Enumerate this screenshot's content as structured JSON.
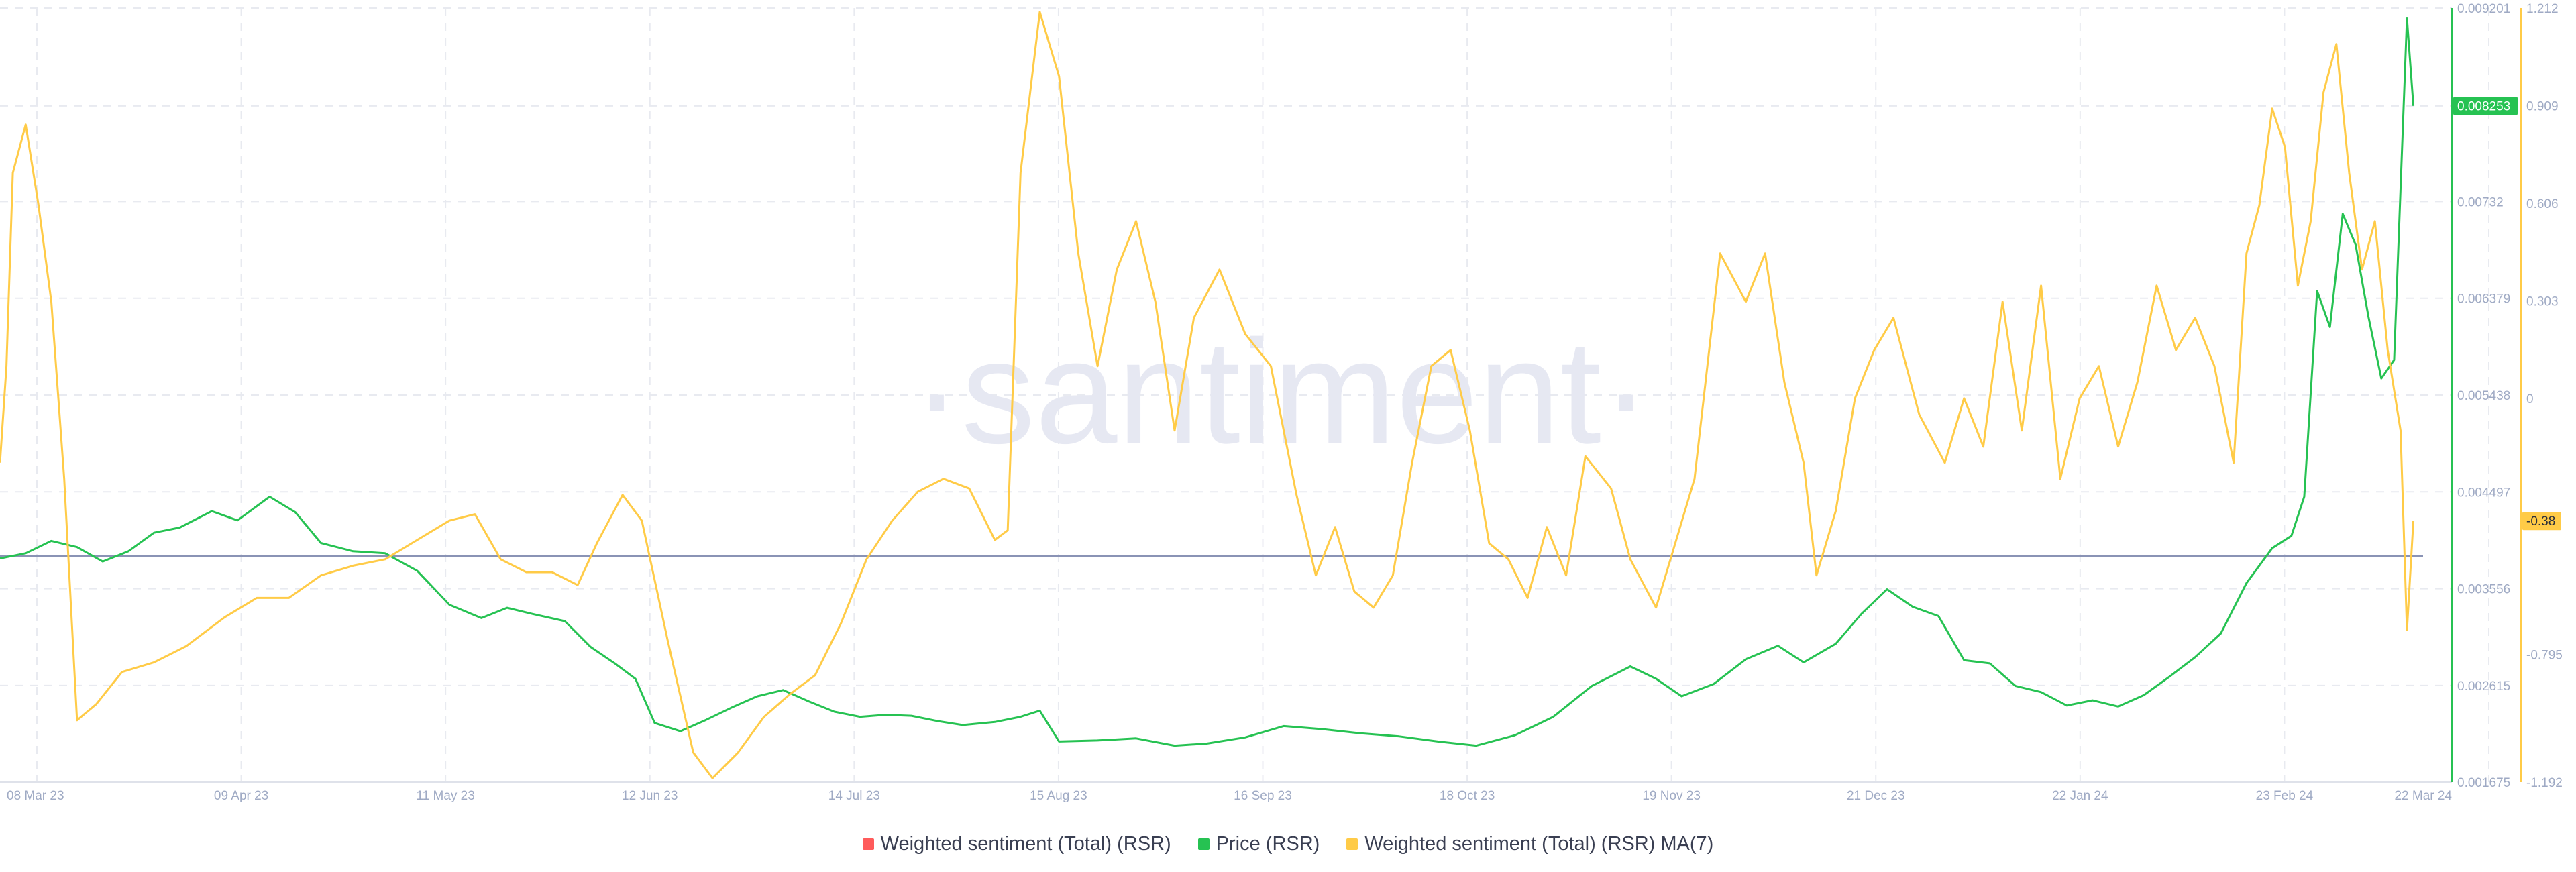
{
  "chart_data": {
    "type": "line",
    "watermark": "·santiment·",
    "x_ticks": [
      "08 Mar 23",
      "09 Apr 23",
      "11 May 23",
      "12 Jun 23",
      "14 Jul 23",
      "15 Aug 23",
      "16 Sep 23",
      "18 Oct 23",
      "19 Nov 23",
      "21 Dec 23",
      "22 Jan 24",
      "23 Feb 24",
      "22 Mar 24"
    ],
    "x_range": [
      "2023-03-06",
      "2024-03-22"
    ],
    "price_axis": {
      "ticks": [
        "0.009201",
        "0.008253",
        "0.00732",
        "0.006379",
        "0.005438",
        "0.004497",
        "0.003556",
        "0.002615",
        "0.001675"
      ],
      "range": [
        0.001675,
        0.009201
      ],
      "current_value": "0.008253",
      "current_color": "#26c252"
    },
    "sentiment_axis": {
      "ticks": [
        "1.212",
        "0.909",
        "0.606",
        "0.303",
        "0",
        "-0.38",
        "-0.795",
        "-1.192"
      ],
      "range": [
        -1.192,
        1.212
      ],
      "current_value": "-0.38",
      "current_color": "#ffcb47"
    },
    "reference_line": {
      "value": -0.49,
      "axis": "sentiment",
      "color": "#8a93b5"
    },
    "series": [
      {
        "name": "Weighted sentiment (Total) (RSR)",
        "color": "#ff5b5b",
        "axis": "sentiment",
        "values": []
      },
      {
        "name": "Price (RSR)",
        "color": "#26c252",
        "axis": "price",
        "values": [
          [
            "2023-03-06",
            0.00385
          ],
          [
            "2023-03-10",
            0.0039
          ],
          [
            "2023-03-14",
            0.00402
          ],
          [
            "2023-03-18",
            0.00396
          ],
          [
            "2023-03-22",
            0.00382
          ],
          [
            "2023-03-26",
            0.00392
          ],
          [
            "2023-03-30",
            0.0041
          ],
          [
            "2023-04-03",
            0.00415
          ],
          [
            "2023-04-08",
            0.00431
          ],
          [
            "2023-04-12",
            0.00422
          ],
          [
            "2023-04-17",
            0.00445
          ],
          [
            "2023-04-21",
            0.0043
          ],
          [
            "2023-04-25",
            0.004
          ],
          [
            "2023-04-30",
            0.00392
          ],
          [
            "2023-05-05",
            0.0039
          ],
          [
            "2023-05-10",
            0.00373
          ],
          [
            "2023-05-15",
            0.0034
          ],
          [
            "2023-05-20",
            0.00327
          ],
          [
            "2023-05-24",
            0.00337
          ],
          [
            "2023-05-28",
            0.00331
          ],
          [
            "2023-06-02",
            0.00324
          ],
          [
            "2023-06-06",
            0.00299
          ],
          [
            "2023-06-10",
            0.00282
          ],
          [
            "2023-06-13",
            0.00268
          ],
          [
            "2023-06-16",
            0.00225
          ],
          [
            "2023-06-20",
            0.00217
          ],
          [
            "2023-06-24",
            0.00228
          ],
          [
            "2023-06-28",
            0.0024
          ],
          [
            "2023-07-02",
            0.00251
          ],
          [
            "2023-07-06",
            0.00257
          ],
          [
            "2023-07-10",
            0.00246
          ],
          [
            "2023-07-14",
            0.00236
          ],
          [
            "2023-07-18",
            0.00231
          ],
          [
            "2023-07-22",
            0.00233
          ],
          [
            "2023-07-26",
            0.00232
          ],
          [
            "2023-07-30",
            0.00227
          ],
          [
            "2023-08-03",
            0.00223
          ],
          [
            "2023-08-08",
            0.00226
          ],
          [
            "2023-08-12",
            0.00231
          ],
          [
            "2023-08-15",
            0.00237
          ],
          [
            "2023-08-18",
            0.00207
          ],
          [
            "2023-08-24",
            0.00208
          ],
          [
            "2023-08-30",
            0.0021
          ],
          [
            "2023-09-05",
            0.00203
          ],
          [
            "2023-09-10",
            0.00205
          ],
          [
            "2023-09-16",
            0.00211
          ],
          [
            "2023-09-22",
            0.00222
          ],
          [
            "2023-09-28",
            0.00219
          ],
          [
            "2023-10-04",
            0.00215
          ],
          [
            "2023-10-10",
            0.00212
          ],
          [
            "2023-10-16",
            0.00207
          ],
          [
            "2023-10-22",
            0.00203
          ],
          [
            "2023-10-28",
            0.00213
          ],
          [
            "2023-11-03",
            0.00231
          ],
          [
            "2023-11-09",
            0.00261
          ],
          [
            "2023-11-15",
            0.0028
          ],
          [
            "2023-11-19",
            0.00268
          ],
          [
            "2023-11-23",
            0.00251
          ],
          [
            "2023-11-28",
            0.00263
          ],
          [
            "2023-12-03",
            0.00287
          ],
          [
            "2023-12-08",
            0.003
          ],
          [
            "2023-12-12",
            0.00284
          ],
          [
            "2023-12-17",
            0.00302
          ],
          [
            "2023-12-21",
            0.00331
          ],
          [
            "2023-12-25",
            0.00355
          ],
          [
            "2023-12-29",
            0.00338
          ],
          [
            "2024-01-02",
            0.00329
          ],
          [
            "2024-01-06",
            0.00286
          ],
          [
            "2024-01-10",
            0.00283
          ],
          [
            "2024-01-14",
            0.00261
          ],
          [
            "2024-01-18",
            0.00255
          ],
          [
            "2024-01-22",
            0.00242
          ],
          [
            "2024-01-26",
            0.00247
          ],
          [
            "2024-01-30",
            0.00241
          ],
          [
            "2024-02-03",
            0.00252
          ],
          [
            "2024-02-07",
            0.0027
          ],
          [
            "2024-02-11",
            0.00289
          ],
          [
            "2024-02-15",
            0.00312
          ],
          [
            "2024-02-19",
            0.00361
          ],
          [
            "2024-02-23",
            0.00395
          ],
          [
            "2024-02-26",
            0.00407
          ],
          [
            "2024-02-28",
            0.00445
          ],
          [
            "2024-03-01",
            0.00645
          ],
          [
            "2024-03-03",
            0.0061
          ],
          [
            "2024-03-05",
            0.0072
          ],
          [
            "2024-03-07",
            0.0069
          ],
          [
            "2024-03-09",
            0.0062
          ],
          [
            "2024-03-11",
            0.0056
          ],
          [
            "2024-03-13",
            0.00578
          ],
          [
            "2024-03-15",
            0.0091
          ],
          [
            "2024-03-16",
            0.00825
          ]
        ]
      },
      {
        "name": "Weighted sentiment (Total) (RSR) MA(7)",
        "color": "#ffcb47",
        "axis": "sentiment",
        "values": [
          [
            "2023-03-06",
            -0.2
          ],
          [
            "2023-03-07",
            0.1
          ],
          [
            "2023-03-08",
            0.7
          ],
          [
            "2023-03-10",
            0.85
          ],
          [
            "2023-03-12",
            0.6
          ],
          [
            "2023-03-14",
            0.3
          ],
          [
            "2023-03-16",
            -0.25
          ],
          [
            "2023-03-18",
            -1.0
          ],
          [
            "2023-03-21",
            -0.95
          ],
          [
            "2023-03-25",
            -0.85
          ],
          [
            "2023-03-30",
            -0.82
          ],
          [
            "2023-04-04",
            -0.77
          ],
          [
            "2023-04-10",
            -0.68
          ],
          [
            "2023-04-15",
            -0.62
          ],
          [
            "2023-04-20",
            -0.62
          ],
          [
            "2023-04-25",
            -0.55
          ],
          [
            "2023-04-30",
            -0.52
          ],
          [
            "2023-05-05",
            -0.5
          ],
          [
            "2023-05-10",
            -0.44
          ],
          [
            "2023-05-15",
            -0.38
          ],
          [
            "2023-05-19",
            -0.36
          ],
          [
            "2023-05-23",
            -0.5
          ],
          [
            "2023-05-27",
            -0.54
          ],
          [
            "2023-05-31",
            -0.54
          ],
          [
            "2023-06-04",
            -0.58
          ],
          [
            "2023-06-07",
            -0.45
          ],
          [
            "2023-06-11",
            -0.3
          ],
          [
            "2023-06-14",
            -0.38
          ],
          [
            "2023-06-18",
            -0.75
          ],
          [
            "2023-06-22",
            -1.1
          ],
          [
            "2023-06-25",
            -1.18
          ],
          [
            "2023-06-29",
            -1.1
          ],
          [
            "2023-07-03",
            -0.99
          ],
          [
            "2023-07-07",
            -0.92
          ],
          [
            "2023-07-11",
            -0.86
          ],
          [
            "2023-07-15",
            -0.7
          ],
          [
            "2023-07-19",
            -0.5
          ],
          [
            "2023-07-23",
            -0.38
          ],
          [
            "2023-07-27",
            -0.29
          ],
          [
            "2023-07-31",
            -0.25
          ],
          [
            "2023-08-04",
            -0.28
          ],
          [
            "2023-08-08",
            -0.44
          ],
          [
            "2023-08-10",
            -0.41
          ],
          [
            "2023-08-12",
            0.7
          ],
          [
            "2023-08-15",
            1.2
          ],
          [
            "2023-08-18",
            1.0
          ],
          [
            "2023-08-21",
            0.45
          ],
          [
            "2023-08-24",
            0.1
          ],
          [
            "2023-08-27",
            0.4
          ],
          [
            "2023-08-30",
            0.55
          ],
          [
            "2023-09-02",
            0.3
          ],
          [
            "2023-09-05",
            -0.1
          ],
          [
            "2023-09-08",
            0.25
          ],
          [
            "2023-09-12",
            0.4
          ],
          [
            "2023-09-16",
            0.2
          ],
          [
            "2023-09-20",
            0.1
          ],
          [
            "2023-09-24",
            -0.3
          ],
          [
            "2023-09-27",
            -0.55
          ],
          [
            "2023-09-30",
            -0.4
          ],
          [
            "2023-10-03",
            -0.6
          ],
          [
            "2023-10-06",
            -0.65
          ],
          [
            "2023-10-09",
            -0.55
          ],
          [
            "2023-10-12",
            -0.2
          ],
          [
            "2023-10-15",
            0.1
          ],
          [
            "2023-10-18",
            0.15
          ],
          [
            "2023-10-21",
            -0.1
          ],
          [
            "2023-10-24",
            -0.45
          ],
          [
            "2023-10-27",
            -0.5
          ],
          [
            "2023-10-30",
            -0.62
          ],
          [
            "2023-11-02",
            -0.4
          ],
          [
            "2023-11-05",
            -0.55
          ],
          [
            "2023-11-08",
            -0.18
          ],
          [
            "2023-11-12",
            -0.28
          ],
          [
            "2023-11-15",
            -0.5
          ],
          [
            "2023-11-19",
            -0.65
          ],
          [
            "2023-11-22",
            -0.45
          ],
          [
            "2023-11-25",
            -0.25
          ],
          [
            "2023-11-29",
            0.45
          ],
          [
            "2023-12-03",
            0.3
          ],
          [
            "2023-12-06",
            0.45
          ],
          [
            "2023-12-09",
            0.05
          ],
          [
            "2023-12-12",
            -0.2
          ],
          [
            "2023-12-14",
            -0.55
          ],
          [
            "2023-12-17",
            -0.35
          ],
          [
            "2023-12-20",
            0.0
          ],
          [
            "2023-12-23",
            0.15
          ],
          [
            "2023-12-26",
            0.25
          ],
          [
            "2023-12-30",
            -0.05
          ],
          [
            "2024-01-03",
            -0.2
          ],
          [
            "2024-01-06",
            0.0
          ],
          [
            "2024-01-09",
            -0.15
          ],
          [
            "2024-01-12",
            0.3
          ],
          [
            "2024-01-15",
            -0.1
          ],
          [
            "2024-01-18",
            0.35
          ],
          [
            "2024-01-21",
            -0.25
          ],
          [
            "2024-01-24",
            0.0
          ],
          [
            "2024-01-27",
            0.1
          ],
          [
            "2024-01-30",
            -0.15
          ],
          [
            "2024-02-02",
            0.05
          ],
          [
            "2024-02-05",
            0.35
          ],
          [
            "2024-02-08",
            0.15
          ],
          [
            "2024-02-11",
            0.25
          ],
          [
            "2024-02-14",
            0.1
          ],
          [
            "2024-02-17",
            -0.2
          ],
          [
            "2024-02-19",
            0.45
          ],
          [
            "2024-02-21",
            0.6
          ],
          [
            "2024-02-23",
            0.9
          ],
          [
            "2024-02-25",
            0.78
          ],
          [
            "2024-02-27",
            0.35
          ],
          [
            "2024-02-29",
            0.55
          ],
          [
            "2024-03-02",
            0.95
          ],
          [
            "2024-03-04",
            1.1
          ],
          [
            "2024-03-06",
            0.7
          ],
          [
            "2024-03-08",
            0.4
          ],
          [
            "2024-03-10",
            0.55
          ],
          [
            "2024-03-12",
            0.15
          ],
          [
            "2024-03-14",
            -0.1
          ],
          [
            "2024-03-15",
            -0.72
          ],
          [
            "2024-03-16",
            -0.38
          ]
        ]
      }
    ]
  }
}
